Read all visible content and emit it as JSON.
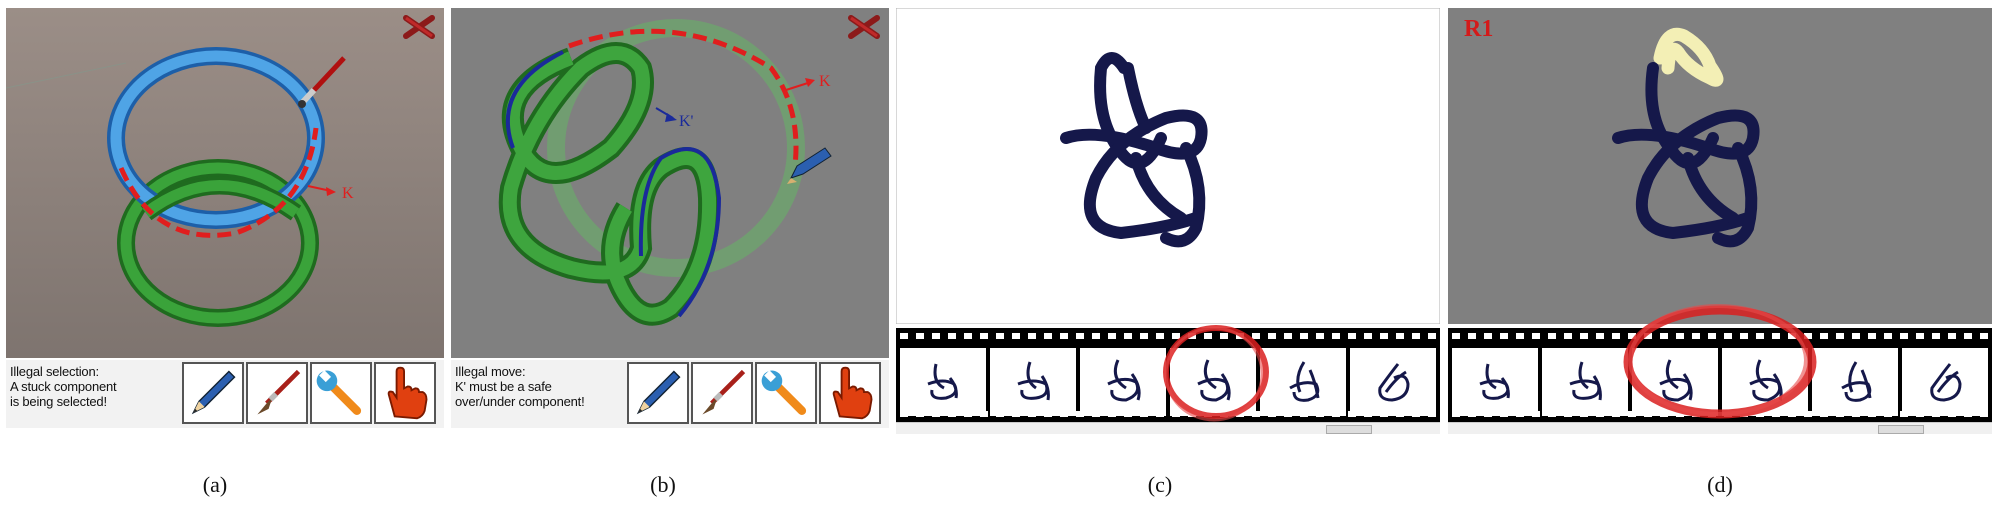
{
  "panels": [
    {
      "caption": "(a)",
      "label_k": "K",
      "message_lines": [
        "Illegal selection:",
        "A stuck component",
        "is being selected!"
      ],
      "tools": [
        "pencil-tool",
        "brush-tool",
        "wrench-tool",
        "hand-tool"
      ]
    },
    {
      "caption": "(b)",
      "label_k": "K",
      "label_k_prime": "K'",
      "message_lines": [
        "Illegal move:",
        "K' must be a safe",
        "over/under component!"
      ],
      "tools": [
        "pencil-tool",
        "brush-tool",
        "wrench-tool",
        "hand-tool"
      ]
    },
    {
      "caption": "(c)",
      "filmstrip_frames": 6,
      "highlighted_frames": [
        4
      ]
    },
    {
      "caption": "(d)",
      "label_r1": "R1",
      "filmstrip_frames": 6,
      "highlighted_frames": [
        3,
        4
      ]
    }
  ],
  "colors": {
    "viewport_a": "#8a7f79",
    "viewport_gray": "#808080",
    "green_tube": "#2e8b2e",
    "blue_tube": "#3a8fd6",
    "knot_navy": "#15184a",
    "highlight_red": "#d91f1f",
    "r1_loop": "#f3efb5"
  }
}
